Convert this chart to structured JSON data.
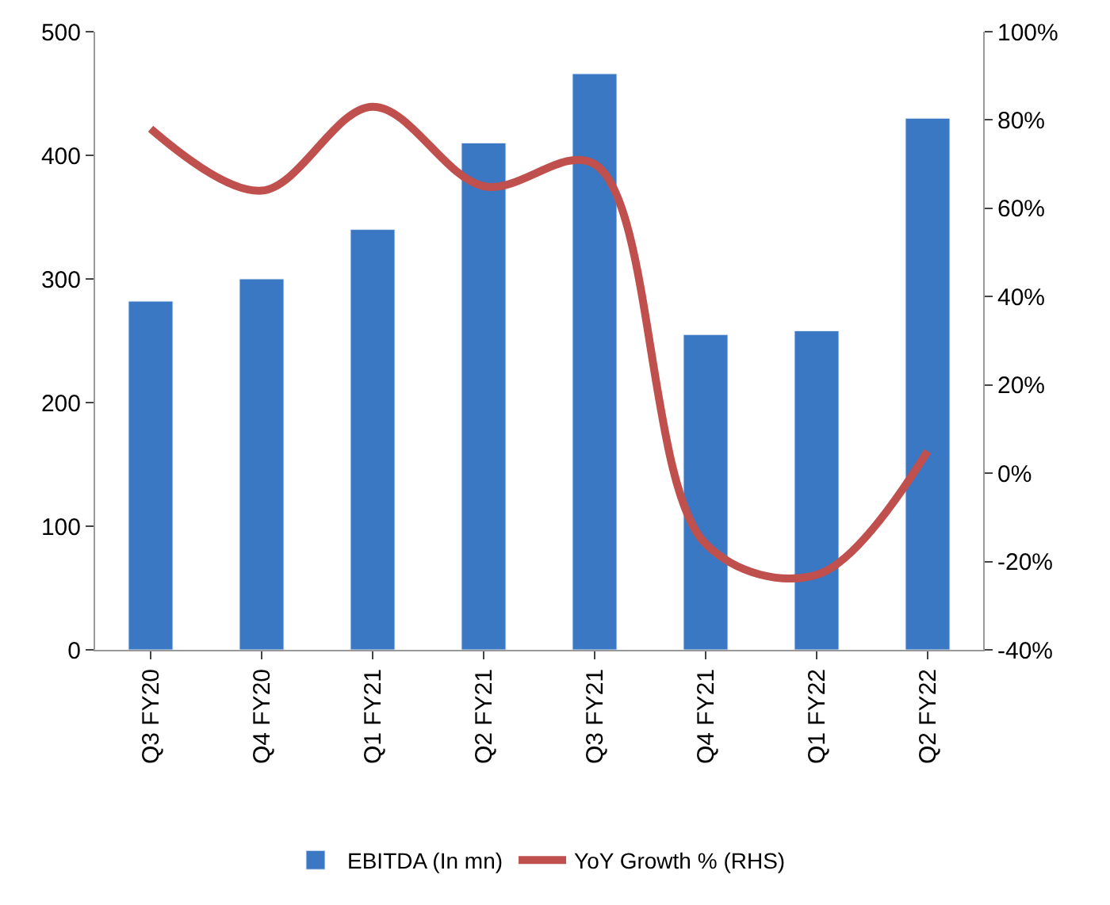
{
  "chart_data": {
    "type": "bar",
    "categories": [
      "Q3 FY20",
      "Q4 FY20",
      "Q1 FY21",
      "Q2 FY21",
      "Q3 FY21",
      "Q4 FY21",
      "Q1 FY22",
      "Q2 FY22"
    ],
    "series": [
      {
        "name": "EBITDA (In mn)",
        "color": "#3a78c3",
        "values": [
          282,
          300,
          340,
          410,
          466,
          255,
          258,
          430
        ]
      },
      {
        "name": "YoY Growth % (RHS)",
        "type": "line",
        "axis": "y2",
        "color": "#c0504d",
        "values": [
          78,
          64,
          83,
          65,
          70,
          -16,
          -23,
          5
        ]
      }
    ],
    "ylim": [
      0,
      500
    ],
    "yticks": [
      0,
      100,
      200,
      300,
      400,
      500
    ],
    "y2lim": [
      -40,
      100
    ],
    "y2ticks": [
      {
        "value": -40,
        "label": "-40%"
      },
      {
        "value": -20,
        "label": "-20%"
      },
      {
        "value": 0,
        "label": "0%"
      },
      {
        "value": 20,
        "label": "20%"
      },
      {
        "value": 40,
        "label": "40%"
      },
      {
        "value": 60,
        "label": "60%"
      },
      {
        "value": 80,
        "label": "80%"
      },
      {
        "value": 100,
        "label": "100%"
      }
    ],
    "legend": "bottom"
  }
}
